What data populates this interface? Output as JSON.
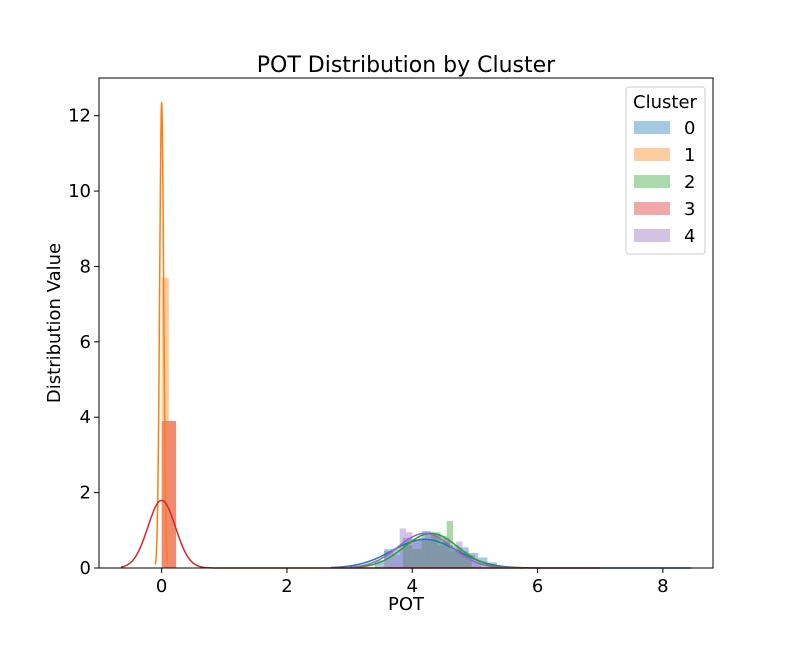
{
  "chart_data": {
    "type": "histogram-kde",
    "title": "POT Distribution by Cluster",
    "xlabel": "POT",
    "ylabel": "Distribution Value",
    "xlim": [
      -1.0,
      8.8
    ],
    "ylim": [
      0,
      13.0
    ],
    "xticks": [
      0,
      2,
      4,
      6,
      8
    ],
    "yticks": [
      0,
      2,
      4,
      6,
      8,
      10,
      12
    ],
    "grid": false,
    "legend": {
      "title": "Cluster",
      "placement": "top-right"
    },
    "series": [
      {
        "name": "0",
        "color": "#1f77b4",
        "bins": [
          [
            3.4,
            3.55,
            0.2
          ],
          [
            3.55,
            3.7,
            0.5
          ],
          [
            3.7,
            3.85,
            0.52
          ],
          [
            3.85,
            4.0,
            0.8
          ],
          [
            4.0,
            4.15,
            0.75
          ],
          [
            4.15,
            4.3,
            0.98
          ],
          [
            4.3,
            4.45,
            0.9
          ],
          [
            4.45,
            4.6,
            0.7
          ],
          [
            4.6,
            4.75,
            0.6
          ],
          [
            4.75,
            4.9,
            0.55
          ],
          [
            4.9,
            5.05,
            0.4
          ],
          [
            5.05,
            5.2,
            0.28
          ],
          [
            5.2,
            5.35,
            0.15
          ]
        ],
        "kde": {
          "type": "gaussian",
          "mean": 4.2,
          "sd": 0.52,
          "scale": 0.99,
          "range": [
            2.7,
            8.45
          ]
        }
      },
      {
        "name": "1",
        "color": "#ff7f0e",
        "bins": [
          [
            0.0,
            0.115,
            7.7
          ],
          [
            0.115,
            0.23,
            3.9
          ]
        ],
        "kde": {
          "type": "gaussian",
          "mean": 0.0,
          "sd": 0.032,
          "scale": 0.99,
          "range": [
            -0.1,
            0.1
          ]
        }
      },
      {
        "name": "2",
        "color": "#2ca02c",
        "bins": [
          [
            3.85,
            4.0,
            0.6
          ],
          [
            4.0,
            4.15,
            0.5
          ],
          [
            4.15,
            4.3,
            0.75
          ],
          [
            4.3,
            4.45,
            0.95
          ],
          [
            4.45,
            4.55,
            0.85
          ],
          [
            4.55,
            4.65,
            1.25
          ],
          [
            4.65,
            4.8,
            0.5
          ],
          [
            4.8,
            4.95,
            0.35
          ]
        ],
        "kde": {
          "type": "gaussian",
          "mean": 4.3,
          "sd": 0.43,
          "scale": 0.99,
          "range": [
            3.0,
            5.8
          ]
        }
      },
      {
        "name": "3",
        "color": "#d62728",
        "bins": [
          [
            0.0,
            0.23,
            3.9
          ]
        ],
        "kde": {
          "type": "gaussian",
          "mean": 0.0,
          "sd": 0.22,
          "scale": 0.99,
          "range": [
            -0.65,
            7.0
          ]
        }
      },
      {
        "name": "4",
        "color": "#9467bd",
        "bins": [
          [
            3.55,
            3.7,
            0.45
          ],
          [
            3.7,
            3.8,
            0.35
          ],
          [
            3.8,
            3.9,
            1.05
          ],
          [
            3.9,
            4.0,
            0.95
          ],
          [
            4.0,
            4.1,
            0.75
          ],
          [
            4.1,
            4.2,
            0.8
          ],
          [
            4.2,
            4.3,
            0.95
          ],
          [
            4.3,
            4.4,
            0.85
          ],
          [
            4.4,
            4.5,
            0.6
          ],
          [
            4.5,
            4.6,
            0.8
          ],
          [
            4.6,
            4.7,
            0.45
          ],
          [
            4.7,
            4.8,
            0.7
          ],
          [
            4.8,
            4.9,
            0.45
          ],
          [
            4.9,
            5.0,
            0.35
          ],
          [
            5.0,
            5.1,
            0.2
          ]
        ],
        "kde": {
          "type": "gaussian",
          "mean": 4.2,
          "sd": 0.43,
          "scale": 0.99,
          "range": [
            3.0,
            5.6
          ]
        }
      }
    ]
  }
}
